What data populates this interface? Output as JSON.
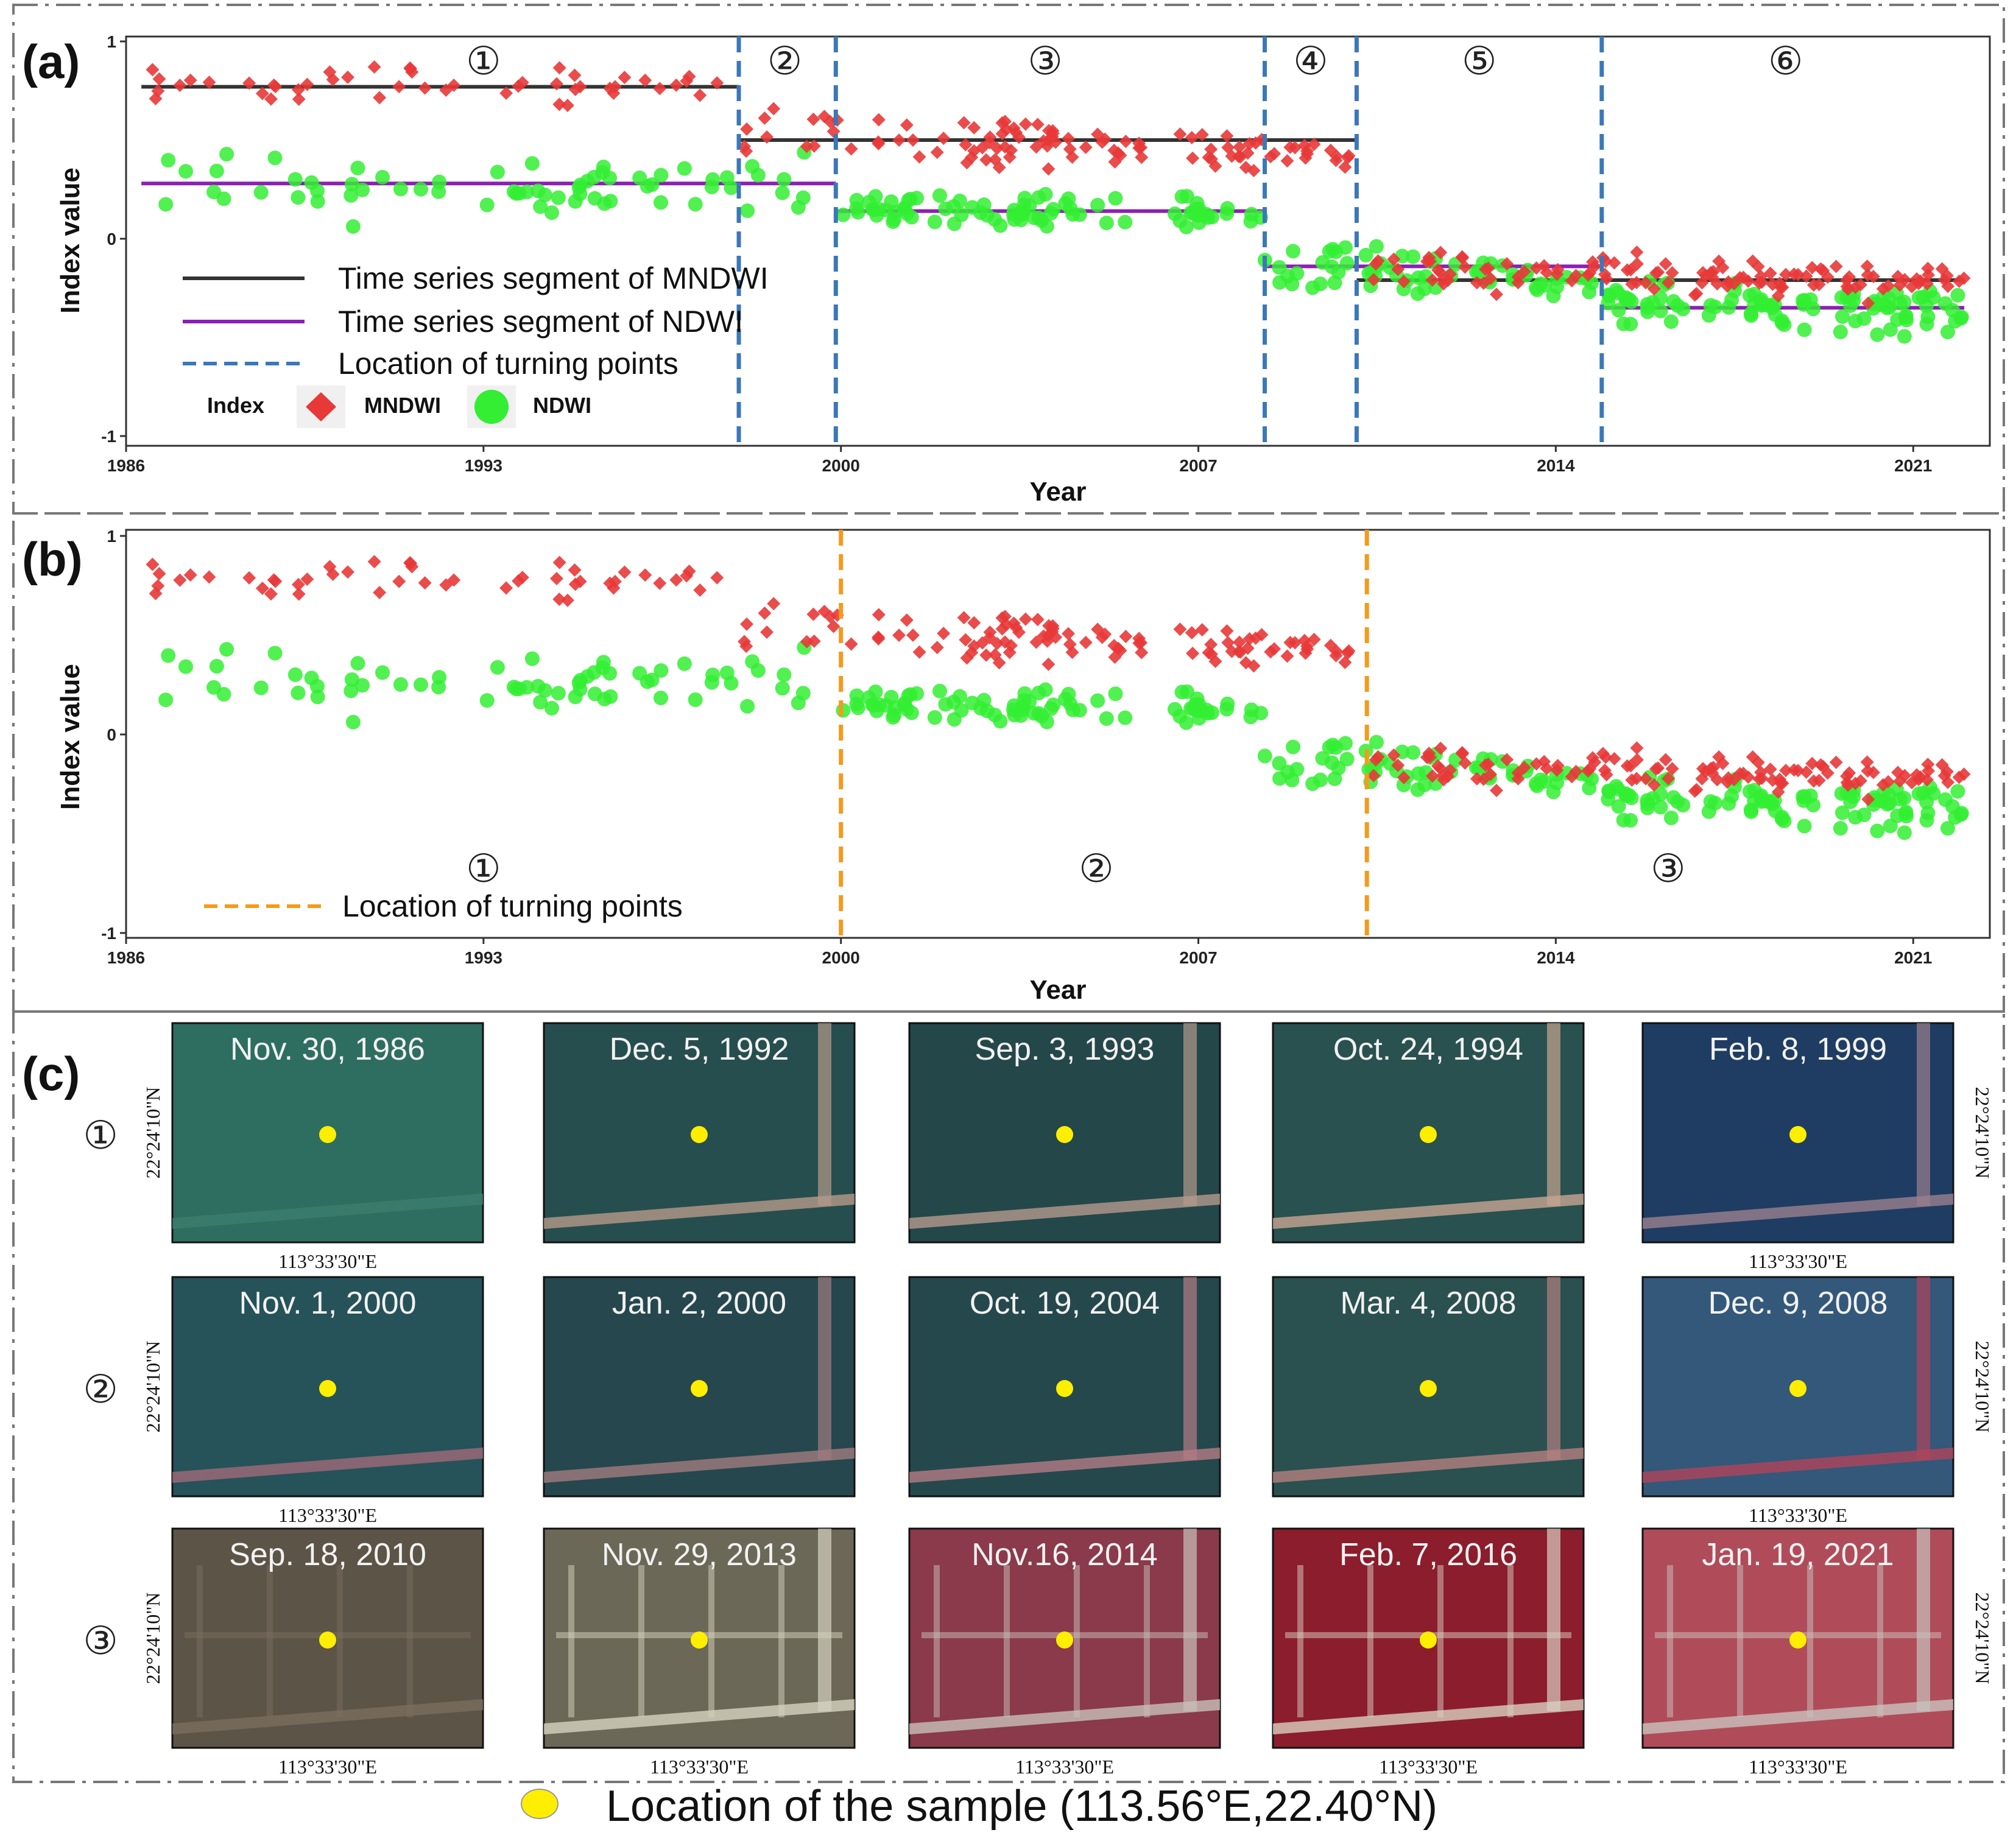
{
  "panels": {
    "a_label": "(a)",
    "b_label": "(b)",
    "c_label": "(c)"
  },
  "axis": {
    "ylabel": "Index value",
    "xlabel": "Year"
  },
  "chart_data": [
    {
      "id": "a",
      "type": "scatter",
      "xlabel": "Year",
      "ylabel": "Index value",
      "xlim": [
        1986,
        2022.5
      ],
      "ylim": [
        -1,
        1
      ],
      "xticks": [
        1986,
        1993,
        2000,
        2007,
        2014,
        2021
      ],
      "yticks": [
        -1,
        0,
        1
      ],
      "series": [
        {
          "name": "MNDWI",
          "marker": "diamond",
          "color": "#e83838"
        },
        {
          "name": "NDWI",
          "marker": "circle",
          "color": "#33ee33"
        }
      ],
      "segments": [
        {
          "series": "MNDWI",
          "color": "#333333",
          "x_start": 1986.3,
          "x_end": 1998.0,
          "value": 0.77
        },
        {
          "series": "MNDWI",
          "color": "#333333",
          "x_start": 1998.0,
          "x_end": 2010.1,
          "value": 0.5
        },
        {
          "series": "MNDWI",
          "color": "#333333",
          "x_start": 2010.1,
          "x_end": 2022.0,
          "value": -0.21
        },
        {
          "series": "NDWI",
          "color": "#8b1fb5",
          "x_start": 1986.3,
          "x_end": 1999.9,
          "value": 0.28
        },
        {
          "series": "NDWI",
          "color": "#8b1fb5",
          "x_start": 1999.9,
          "x_end": 2008.3,
          "value": 0.14
        },
        {
          "series": "NDWI",
          "color": "#8b1fb5",
          "x_start": 2008.3,
          "x_end": 2014.9,
          "value": -0.14
        },
        {
          "series": "NDWI",
          "color": "#8b1fb5",
          "x_start": 2014.9,
          "x_end": 2022.0,
          "value": -0.35
        }
      ],
      "turning_points": [
        1998.0,
        1999.9,
        2008.3,
        2010.1,
        2014.9
      ],
      "turning_color": "#3a78b8",
      "period_labels": [
        {
          "text": "①",
          "x": 1993.0
        },
        {
          "text": "②",
          "x": 1998.9
        },
        {
          "text": "③",
          "x": 2004.0
        },
        {
          "text": "④",
          "x": 2009.2
        },
        {
          "text": "⑤",
          "x": 2012.5
        },
        {
          "text": "⑥",
          "x": 2018.5
        }
      ],
      "legend": {
        "lines": [
          "Time series segment of MNDWI",
          "Time series segment of NDWI",
          "Location of turning points"
        ],
        "title": "Index",
        "entries": [
          "MNDWI",
          "NDWI"
        ]
      },
      "mndwi_periods": [
        {
          "start": 1986.5,
          "end": 1997.9,
          "mean": 0.78,
          "spread": 0.09,
          "trend": -0.02,
          "density": 4.2
        },
        {
          "start": 1998.0,
          "end": 2008.4,
          "mean": 0.5,
          "spread": 0.1,
          "trend": -0.12,
          "density": 9.0
        },
        {
          "start": 2008.4,
          "end": 2010.0,
          "mean": 0.43,
          "spread": 0.06,
          "trend": 0.0,
          "density": 10.0
        },
        {
          "start": 2010.2,
          "end": 2014.8,
          "mean": -0.16,
          "spread": 0.09,
          "trend": 0.0,
          "density": 9.0
        },
        {
          "start": 2014.9,
          "end": 2022.0,
          "mean": -0.2,
          "spread": 0.08,
          "trend": -0.06,
          "density": 12.0
        }
      ],
      "ndwi_periods": [
        {
          "start": 1986.5,
          "end": 1999.9,
          "mean": 0.27,
          "spread": 0.14,
          "trend": 0.0,
          "density": 5.0
        },
        {
          "start": 2000.0,
          "end": 2008.3,
          "mean": 0.15,
          "spread": 0.08,
          "trend": 0.0,
          "density": 10.0
        },
        {
          "start": 2008.3,
          "end": 2010.1,
          "mean": -0.15,
          "spread": 0.12,
          "trend": 0.0,
          "density": 10.0
        },
        {
          "start": 2010.2,
          "end": 2014.9,
          "mean": -0.18,
          "spread": 0.1,
          "trend": -0.05,
          "density": 10.0
        },
        {
          "start": 2015.0,
          "end": 2022.0,
          "mean": -0.35,
          "spread": 0.1,
          "trend": -0.05,
          "density": 14.0
        }
      ]
    },
    {
      "id": "b",
      "type": "scatter",
      "xlabel": "Year",
      "ylabel": "Index value",
      "xlim": [
        1986,
        2022.5
      ],
      "ylim": [
        -1,
        1
      ],
      "xticks": [
        1986,
        1993,
        2000,
        2007,
        2014,
        2021
      ],
      "yticks": [
        -1,
        0,
        1
      ],
      "turning_points": [
        2000.0,
        2010.3
      ],
      "turning_color": "#f59a1b",
      "period_labels": [
        {
          "text": "①",
          "x": 1993.0
        },
        {
          "text": "②",
          "x": 2005.0
        },
        {
          "text": "③",
          "x": 2016.2
        }
      ],
      "legend": {
        "lines": [
          "Location of turning points"
        ]
      }
    }
  ],
  "thumbnails": {
    "rows": [
      {
        "label": "①",
        "cells": [
          {
            "date": "Nov. 30, 1986",
            "lon": "113°33'30\"E",
            "bg": "#2e6e60",
            "accent": "#3b7e6e"
          },
          {
            "date": "Dec. 5, 1992",
            "lon": "",
            "bg": "#274e4e",
            "accent": "#b59a8a"
          },
          {
            "date": "Sep. 3, 1993",
            "lon": "",
            "bg": "#24474a",
            "accent": "#b49a8c"
          },
          {
            "date": "Oct. 24, 1994",
            "lon": "",
            "bg": "#28514f",
            "accent": "#c7a592"
          },
          {
            "date": "Feb. 8, 1999",
            "lon": "113°33'30\"E",
            "bg": "#1f3d62",
            "accent": "#9b7f8e"
          }
        ]
      },
      {
        "label": "②",
        "cells": [
          {
            "date": "Nov. 1, 2000",
            "lon": "113°33'30\"E",
            "bg": "#26525a",
            "accent": "#a06a78"
          },
          {
            "date": "Jan. 2, 2000",
            "lon": "",
            "bg": "#26474e",
            "accent": "#a07c80"
          },
          {
            "date": "Oct. 19, 2004",
            "lon": "",
            "bg": "#25484d",
            "accent": "#b47c84"
          },
          {
            "date": "Mar. 4, 2008",
            "lon": "",
            "bg": "#2b5050",
            "accent": "#b58080"
          },
          {
            "date": "Dec. 9, 2008",
            "lon": "113°33'30\"E",
            "bg": "#33587a",
            "accent": "#b0455a"
          }
        ]
      },
      {
        "label": "③",
        "cells": [
          {
            "date": "Sep. 18, 2010",
            "lon": "113°33'30\"E",
            "bg": "#5c5447",
            "accent": "#7a6e5e"
          },
          {
            "date": "Nov. 29, 2013",
            "lon": "113°33'30\"E",
            "bg": "#6b6857",
            "accent": "#d6d2c0"
          },
          {
            "date": "Nov.16, 2014",
            "lon": "113°33'30\"E",
            "bg": "#8a3a4a",
            "accent": "#c7c0b8"
          },
          {
            "date": "Feb. 7, 2016",
            "lon": "113°33'30\"E",
            "bg": "#8c1d2c",
            "accent": "#d8cfc0"
          },
          {
            "date": "Jan. 19, 2021",
            "lon": "113°33'30\"E",
            "bg": "#b04c5a",
            "accent": "#c9c2bc"
          }
        ]
      }
    ],
    "lat_label": "22°24'10\"N"
  },
  "footer": {
    "text": "Location of the sample (113.56°E,22.40°N)",
    "marker_color": "#ffee00"
  }
}
